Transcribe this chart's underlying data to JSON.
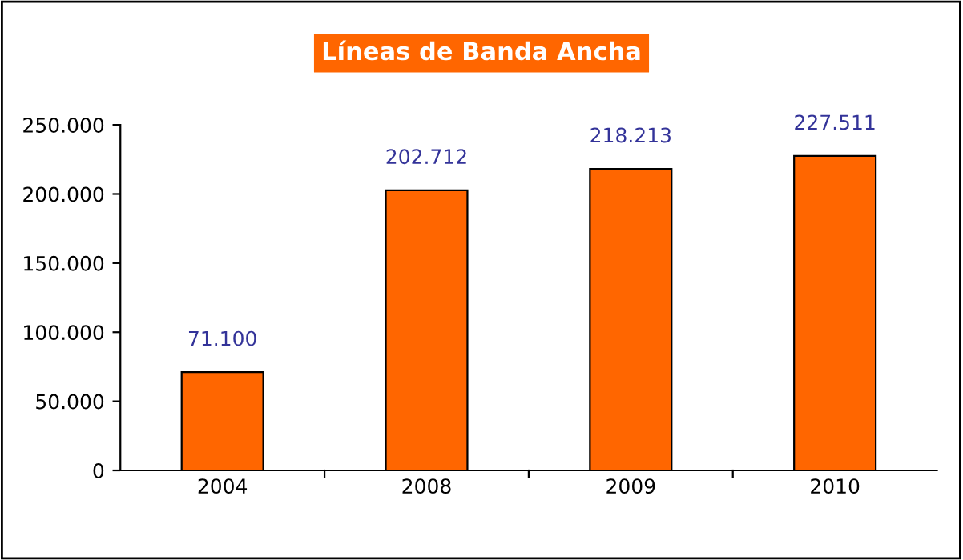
{
  "chart_data": {
    "type": "bar",
    "title": "Líneas de Banda Ancha",
    "categories": [
      "2004",
      "2008",
      "2009",
      "2010"
    ],
    "values": [
      71100,
      202712,
      218213,
      227511
    ],
    "value_labels": [
      "71.100",
      "202.712",
      "218.213",
      "227.511"
    ],
    "color": "#ff6600",
    "ylim": [
      0,
      250000
    ],
    "yticks": [
      {
        "value": 0,
        "label": "0"
      },
      {
        "value": 50000,
        "label": "50.000"
      },
      {
        "value": 100000,
        "label": "100.000"
      },
      {
        "value": 150000,
        "label": "150.000"
      },
      {
        "value": 200000,
        "label": "200.000"
      },
      {
        "value": 250000,
        "label": "250.000"
      }
    ],
    "grid": false,
    "legend": false
  }
}
